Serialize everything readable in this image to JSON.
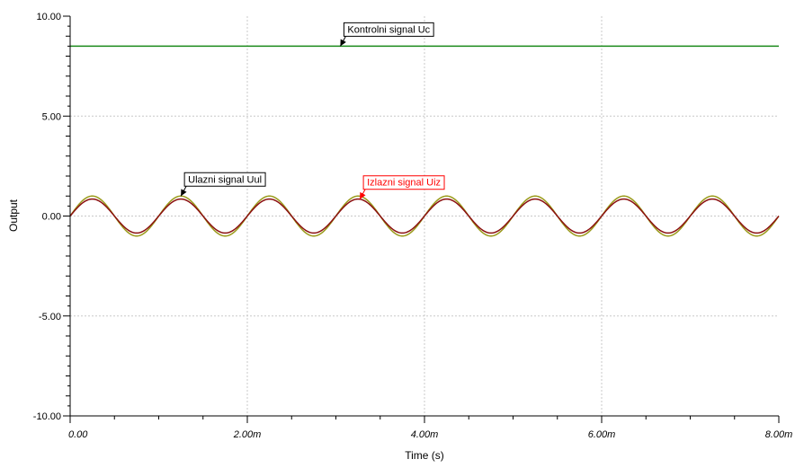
{
  "chart_data": {
    "type": "line",
    "xlabel": "Time (s)",
    "ylabel": "Output",
    "xlim": [
      0,
      8
    ],
    "ylim": [
      -10,
      10
    ],
    "x_unit_suffix": "m",
    "x_ticks": [
      {
        "value": 0,
        "label": "0.00"
      },
      {
        "value": 2,
        "label": "2.00m"
      },
      {
        "value": 4,
        "label": "4.00m"
      },
      {
        "value": 6,
        "label": "6.00m"
      },
      {
        "value": 8,
        "label": "8.00m"
      }
    ],
    "y_ticks": [
      {
        "value": 10,
        "label": "10.00"
      },
      {
        "value": 5,
        "label": "5.00"
      },
      {
        "value": 0,
        "label": "0.00"
      },
      {
        "value": -5,
        "label": "-5.00"
      },
      {
        "value": -10,
        "label": "-10.00"
      }
    ],
    "grid": true,
    "series": [
      {
        "name": "Kontrolni signal Uc",
        "kind": "constant",
        "value": 8.5,
        "color": "#1a8a1a"
      },
      {
        "name": "Ulazni signal Uul",
        "kind": "sine",
        "amplitude": 1.0,
        "period_ms": 1.0,
        "phase": 0,
        "color": "#9a9a1a"
      },
      {
        "name": "Izlazni signal Uiz",
        "kind": "sine",
        "amplitude": 0.85,
        "period_ms": 1.0,
        "phase": 0,
        "color": "#8b1010"
      }
    ],
    "annotations": [
      {
        "text": "Kontrolni signal Uc",
        "series": 0,
        "point_x": 3.05,
        "color": "#000000",
        "border": "#000000"
      },
      {
        "text": "Ulazni signal Uul",
        "series": 1,
        "point_x": 1.25,
        "color": "#000000",
        "border": "#000000"
      },
      {
        "text": "Izlazni signal Uiz",
        "series": 2,
        "point_x": 3.27,
        "color": "#ff0000",
        "border": "#ff0000"
      }
    ]
  }
}
